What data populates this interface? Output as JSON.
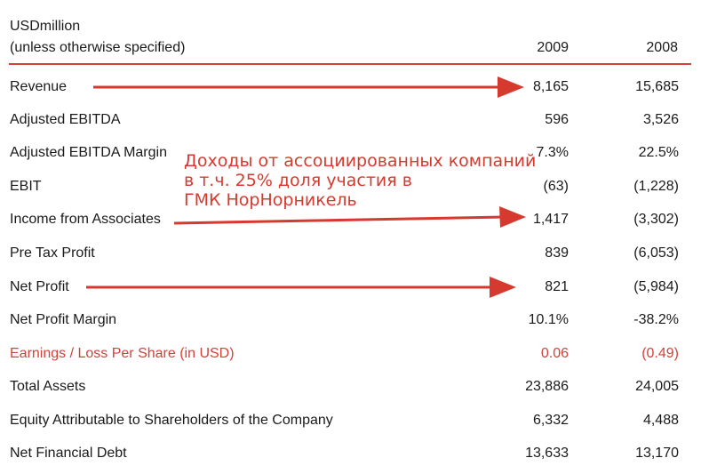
{
  "header": {
    "unit": "USDmillion",
    "subtitle": "(unless otherwise specified)",
    "year1": "2009",
    "year2": "2008"
  },
  "rows": [
    {
      "label": "Revenue",
      "v2009": "8,165",
      "v2008": "15,685"
    },
    {
      "label": "Adjusted EBITDA",
      "v2009": "596",
      "v2008": "3,526"
    },
    {
      "label": "Adjusted EBITDA Margin",
      "v2009": "7.3%",
      "v2008": "22.5%"
    },
    {
      "label": "EBIT",
      "v2009": "(63)",
      "v2008": "(1,228)"
    },
    {
      "label": "Income from Associates",
      "v2009": "1,417",
      "v2008": "(3,302)"
    },
    {
      "label": "Pre Tax Profit",
      "v2009": "839",
      "v2008": "(6,053)"
    },
    {
      "label": "Net Profit",
      "v2009": "821",
      "v2008": "(5,984)"
    },
    {
      "label": "Net Profit Margin",
      "v2009": "10.1%",
      "v2008": "-38.2%"
    },
    {
      "label": "Earnings / Loss Per Share (in USD)",
      "v2009": "0.06",
      "v2008": "(0.49)"
    },
    {
      "label": "Total Assets",
      "v2009": "23,886",
      "v2008": "24,005"
    },
    {
      "label": "Equity Attributable to Shareholders of the Company",
      "v2009": "6,332",
      "v2008": "4,488"
    },
    {
      "label": "Net Financial Debt",
      "v2009": "13,633",
      "v2008": "13,170"
    }
  ],
  "annotation": {
    "line1": "Доходы от ассоциированных компаний",
    "line2": "в т.ч. 25% доля участия в",
    "line3": "ГМК НорНорникель"
  },
  "colors": {
    "accent": "#d0433a",
    "arrow": "#d63a2f",
    "text": "#1a1a1a"
  }
}
